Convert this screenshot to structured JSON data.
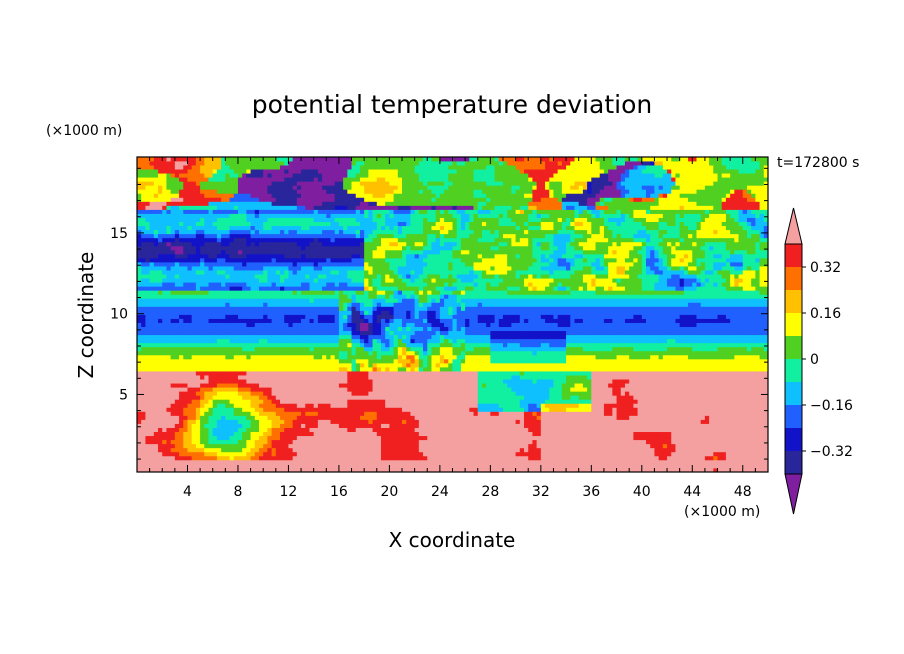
{
  "chart_data": {
    "type": "heatmap",
    "title": "potential temperature deviation",
    "xlabel": "X coordinate",
    "ylabel": "Z coordinate",
    "x_unit": "(×1000 m)",
    "y_unit": "(×1000 m)",
    "time_label": "t=172800 s",
    "xlim": [
      0,
      50
    ],
    "ylim": [
      0.2,
      19.7
    ],
    "x_ticks": [
      "4",
      "8",
      "12",
      "16",
      "20",
      "24",
      "28",
      "32",
      "36",
      "40",
      "44",
      "48"
    ],
    "y_ticks": [
      "5",
      "10",
      "15"
    ],
    "colorbar": {
      "levels": [
        -0.4,
        -0.32,
        -0.24,
        -0.16,
        -0.08,
        0,
        0.08,
        0.16,
        0.24,
        0.32,
        0.4
      ],
      "labels": [
        "0.32",
        "0.16",
        "0",
        "−0.16",
        "−0.32"
      ],
      "label_values": [
        0.32,
        0.16,
        0,
        -0.16,
        -0.32
      ],
      "colors": [
        "#7f1fa0",
        "#29259b",
        "#1212c8",
        "#2060ff",
        "#0fc0ff",
        "#10f0a0",
        "#50d020",
        "#ffff00",
        "#ffc000",
        "#ff7000",
        "#f02020",
        "#f4a0a0"
      ],
      "extend": "both"
    },
    "grid": false
  }
}
